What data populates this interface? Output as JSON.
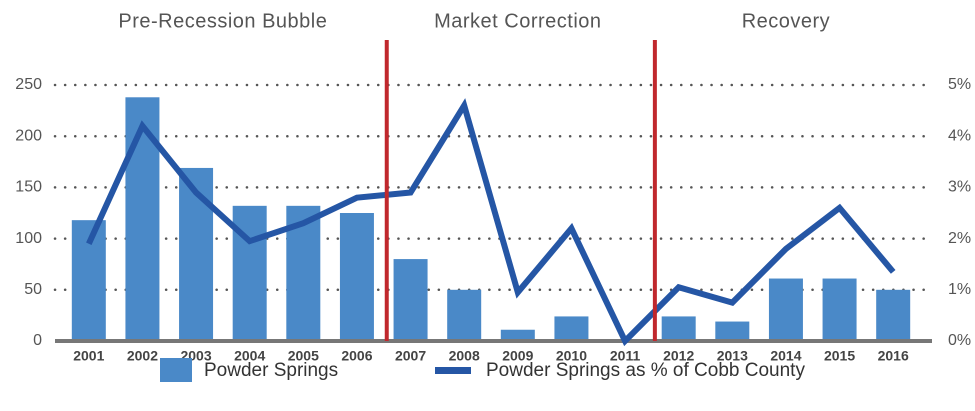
{
  "chart_data": {
    "type": "bar",
    "categories": [
      "2001",
      "2002",
      "2003",
      "2004",
      "2005",
      "2006",
      "2007",
      "2008",
      "2009",
      "2010",
      "2011",
      "2012",
      "2013",
      "2014",
      "2015",
      "2016"
    ],
    "series": [
      {
        "name": "Powder Springs",
        "type": "bar",
        "color": "#4a89c8",
        "values": [
          118,
          238,
          169,
          132,
          132,
          125,
          80,
          50,
          11,
          24,
          0,
          24,
          19,
          61,
          61,
          50
        ]
      },
      {
        "name": "Powder Springs as % of Cobb County",
        "type": "line",
        "axis": "y2",
        "color": "#2556a5",
        "values": [
          1.9,
          4.2,
          2.9,
          1.95,
          2.3,
          2.8,
          2.9,
          4.6,
          0.95,
          2.2,
          0,
          1.05,
          0.75,
          1.8,
          2.6,
          1.35
        ]
      }
    ],
    "ylim": [
      0,
      250
    ],
    "yticks": [
      0,
      50,
      100,
      150,
      200,
      250
    ],
    "y2lim": [
      0,
      5
    ],
    "y2ticks": [
      {
        "value": 0,
        "label": "0%"
      },
      {
        "value": 1,
        "label": "1%"
      },
      {
        "value": 2,
        "label": "2%"
      },
      {
        "value": 3,
        "label": "3%"
      },
      {
        "value": 4,
        "label": "4%"
      },
      {
        "value": 5,
        "label": "5%"
      }
    ],
    "grid": true,
    "periods": [
      {
        "label": "Pre-Recession Bubble",
        "from": "2001",
        "to": "2006"
      },
      {
        "label": "Market Correction",
        "from": "2007",
        "to": "2011"
      },
      {
        "label": "Recovery",
        "from": "2012",
        "to": "2016"
      }
    ],
    "divider_color": "#c0282d",
    "legend": "bottom"
  }
}
